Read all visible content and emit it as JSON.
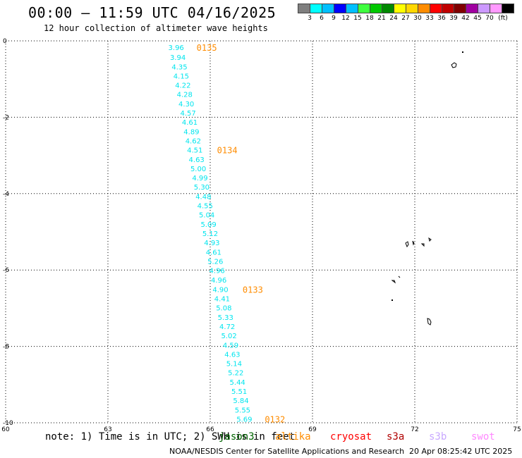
{
  "header": {
    "title": "00:00 – 11:59 UTC 04/16/2025",
    "subtitle": "12 hour collection of altimeter wave heights"
  },
  "colorbar": {
    "swatches": [
      "#7f7f7f",
      "#00ffff",
      "#00bfff",
      "#0000ff",
      "#00bfff",
      "#3fff3f",
      "#00c800",
      "#008800",
      "#ffff00",
      "#ffd700",
      "#ff8c00",
      "#ff0000",
      "#c00000",
      "#800000",
      "#a000a0",
      "#cc99ff",
      "#ff99ff",
      "#000000"
    ],
    "labels": [
      "3",
      "6",
      "9",
      "12",
      "15",
      "18",
      "21",
      "24",
      "27",
      "30",
      "33",
      "36",
      "39",
      "42",
      "45",
      "70",
      "(ft)"
    ]
  },
  "chart_data": {
    "type": "scatter",
    "xlim": [
      60,
      75
    ],
    "ylim": [
      -10,
      0
    ],
    "x_ticks": [
      "60",
      "63",
      "66",
      "69",
      "72",
      "75"
    ],
    "y_ticks": [
      "0",
      "-2",
      "-4",
      "-6",
      "-8",
      "-10"
    ],
    "grid": true,
    "points": [
      {
        "x": 65.0,
        "y": -0.17,
        "label": "3.96"
      },
      {
        "x": 65.05,
        "y": -0.42,
        "label": "3.94"
      },
      {
        "x": 65.1,
        "y": -0.67,
        "label": "4.35"
      },
      {
        "x": 65.15,
        "y": -0.91,
        "label": "4.15"
      },
      {
        "x": 65.2,
        "y": -1.15,
        "label": "4.22"
      },
      {
        "x": 65.25,
        "y": -1.39,
        "label": "4.28"
      },
      {
        "x": 65.3,
        "y": -1.64,
        "label": "4.30"
      },
      {
        "x": 65.35,
        "y": -1.88,
        "label": "4.57"
      },
      {
        "x": 65.4,
        "y": -2.12,
        "label": "4.61"
      },
      {
        "x": 65.45,
        "y": -2.37,
        "label": "4.89"
      },
      {
        "x": 65.5,
        "y": -2.61,
        "label": "4.62"
      },
      {
        "x": 65.55,
        "y": -2.85,
        "label": "4.51"
      },
      {
        "x": 65.6,
        "y": -3.1,
        "label": "4.63"
      },
      {
        "x": 65.65,
        "y": -3.34,
        "label": "5.00"
      },
      {
        "x": 65.7,
        "y": -3.58,
        "label": "4.99"
      },
      {
        "x": 65.75,
        "y": -3.82,
        "label": "5.30"
      },
      {
        "x": 65.8,
        "y": -4.07,
        "label": "4.48"
      },
      {
        "x": 65.85,
        "y": -4.31,
        "label": "4.55"
      },
      {
        "x": 65.9,
        "y": -4.55,
        "label": "5.04"
      },
      {
        "x": 65.95,
        "y": -4.8,
        "label": "5.09"
      },
      {
        "x": 66.0,
        "y": -5.04,
        "label": "5.12"
      },
      {
        "x": 66.05,
        "y": -5.28,
        "label": "4.93"
      },
      {
        "x": 66.1,
        "y": -5.53,
        "label": "4.61"
      },
      {
        "x": 66.15,
        "y": -5.77,
        "label": "5.26"
      },
      {
        "x": 66.2,
        "y": -6.01,
        "label": "4.96"
      },
      {
        "x": 66.25,
        "y": -6.25,
        "label": "4.96"
      },
      {
        "x": 66.3,
        "y": -6.5,
        "label": "4.90"
      },
      {
        "x": 66.35,
        "y": -6.74,
        "label": "4.41"
      },
      {
        "x": 66.4,
        "y": -6.98,
        "label": "5.08"
      },
      {
        "x": 66.45,
        "y": -7.23,
        "label": "5.33"
      },
      {
        "x": 66.5,
        "y": -7.47,
        "label": "4.72"
      },
      {
        "x": 66.55,
        "y": -7.71,
        "label": "5.02"
      },
      {
        "x": 66.6,
        "y": -7.96,
        "label": "4.59"
      },
      {
        "x": 66.65,
        "y": -8.2,
        "label": "4.63"
      },
      {
        "x": 66.7,
        "y": -8.44,
        "label": "5.14"
      },
      {
        "x": 66.75,
        "y": -8.68,
        "label": "5.22"
      },
      {
        "x": 66.8,
        "y": -8.93,
        "label": "5.44"
      },
      {
        "x": 66.85,
        "y": -9.17,
        "label": "5.51"
      },
      {
        "x": 66.9,
        "y": -9.41,
        "label": "5.84"
      },
      {
        "x": 66.95,
        "y": -9.66,
        "label": "5.55"
      },
      {
        "x": 67.0,
        "y": -9.9,
        "label": "5.69"
      }
    ],
    "point_color": "#00e5ee",
    "time_labels": [
      {
        "text": "0135",
        "x": 65.6,
        "y": -0.17
      },
      {
        "text": "0134",
        "x": 66.2,
        "y": -2.85
      },
      {
        "text": "0133",
        "x": 66.95,
        "y": -6.5
      },
      {
        "text": "0132",
        "x": 67.6,
        "y": -9.9
      }
    ],
    "time_label_color": "#ff8c00"
  },
  "footer": {
    "note": "note: 1) Time is in UTC; 2) SWH is in feet",
    "missions": [
      {
        "name": "jason3",
        "color": "#006400"
      },
      {
        "name": "altika",
        "color": "#ff8c00"
      },
      {
        "name": "cryosat",
        "color": "#ff0000"
      },
      {
        "name": "s3a",
        "color": "#b00000"
      },
      {
        "name": "s3b",
        "color": "#c8a8ff"
      },
      {
        "name": "swot",
        "color": "#ff88ff"
      }
    ],
    "credit": "NOAA/NESDIS Center for Satellite Applications and Research",
    "timestamp": "20 Apr 08:25:42 UTC 2025"
  }
}
